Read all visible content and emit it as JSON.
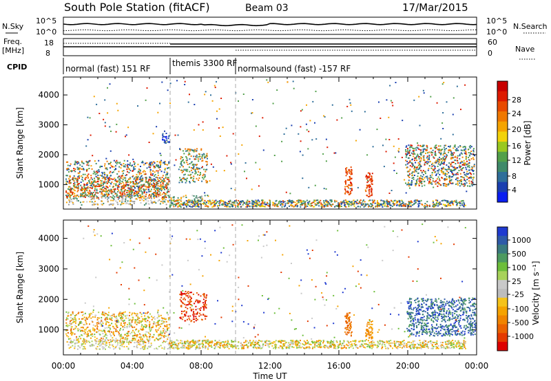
{
  "header": {
    "title": "South Pole Station (fitACF)",
    "beam": "Beam 03",
    "date": "17/Mar/2015"
  },
  "chart_data": [
    {
      "type": "line",
      "panel": "noise",
      "ylabel_left": "N.Sky",
      "ylabel_right": "N.Search",
      "left_ticks": [
        "10^5",
        "10^0"
      ],
      "right_ticks": [
        "10^5",
        "10^0"
      ],
      "series": [
        {
          "name": "N.Sky",
          "style": "solid"
        },
        {
          "name": "N.Search",
          "style": "dotted"
        }
      ]
    },
    {
      "type": "line",
      "panel": "frequency",
      "ylabel_left": "Freq.\n[MHz]",
      "ylabel_right": "Nave",
      "left_ticks": [
        "18",
        "8"
      ],
      "right_ticks": [
        "60",
        "0"
      ],
      "series": [
        {
          "name": "Freq.",
          "style": "solid"
        },
        {
          "name": "Nave",
          "style": "dotted"
        }
      ]
    },
    {
      "type": "table",
      "panel": "cpid",
      "label": "CPID",
      "segments": [
        {
          "start_hour": 0.0,
          "end_hour": 6.2,
          "label": "normal (fast) 151 RF"
        },
        {
          "start_hour": 6.2,
          "end_hour": 10.0,
          "label": "themis 3300 RF"
        },
        {
          "start_hour": 10.0,
          "end_hour": 24.0,
          "label": "normalsound (fast) -157 RF"
        }
      ]
    },
    {
      "type": "heatmap",
      "panel": "power",
      "ylabel": "Slant Range [km]",
      "yticks": [
        1000,
        2000,
        3000,
        4000
      ],
      "ylim": [
        180,
        4600
      ],
      "xlim_hours": [
        0,
        24
      ],
      "xtick_labels": [
        "00:00",
        "04:00",
        "08:00",
        "12:00",
        "16:00",
        "20:00",
        "00:00"
      ],
      "colorbar": {
        "label": "Power [dB]",
        "tick_labels": [
          "4",
          "8",
          "12",
          "16",
          "20",
          "24",
          "28"
        ],
        "colors": [
          "#0a1ef0",
          "#1a3fb0",
          "#2e6e9a",
          "#3f8a6a",
          "#52a04a",
          "#9ac820",
          "#f2d20a",
          "#f5a400",
          "#f07800",
          "#e84a00",
          "#dd1a00",
          "#c80000"
        ]
      },
      "vertical_markers_hours": [
        6.2,
        10.0
      ]
    },
    {
      "type": "heatmap",
      "panel": "velocity",
      "ylabel": "Slant Range [km]",
      "yticks": [
        1000,
        2000,
        3000,
        4000
      ],
      "ylim": [
        180,
        4600
      ],
      "xlim_hours": [
        0,
        24
      ],
      "xtick_labels": [
        "00:00",
        "04:00",
        "08:00",
        "12:00",
        "16:00",
        "20:00",
        "00:00"
      ],
      "xlabel": "Time UT",
      "colorbar": {
        "label": "Velocity [m s⁻¹]",
        "tick_labels": [
          "1000",
          "500",
          "100",
          "25",
          "-25",
          "-100",
          "-500",
          "-1000"
        ],
        "colors": [
          "#1f3ad0",
          "#2e5aa8",
          "#3a7a7e",
          "#4d9a60",
          "#6dbe3a",
          "#a8d25a",
          "#c9c9c9",
          "#bdbdbd",
          "#f5c31a",
          "#f5a300",
          "#f08400",
          "#ea6200",
          "#e43a00",
          "#dd0000"
        ]
      },
      "vertical_markers_hours": [
        6.2,
        10.0
      ]
    }
  ]
}
